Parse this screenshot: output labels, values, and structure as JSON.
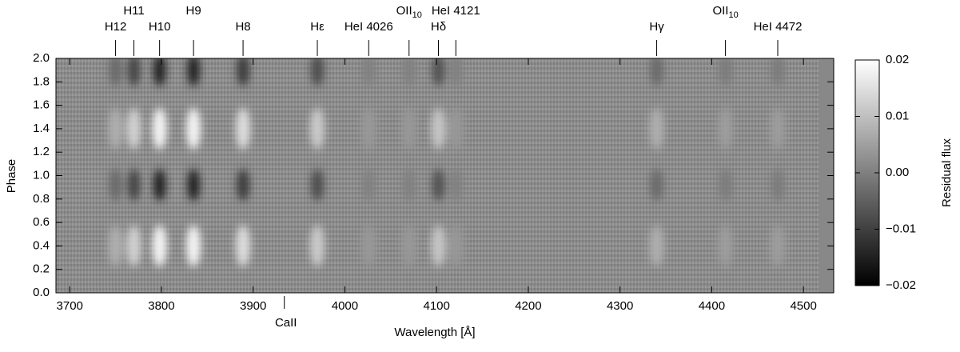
{
  "chart_data": {
    "type": "heatmap",
    "x_label": "Wavelength [Å]",
    "y_label": "Phase",
    "colorbar_label": "Residual flux",
    "xlim": [
      3685,
      4533
    ],
    "ylim": [
      0,
      2
    ],
    "xticks": [
      3700,
      3800,
      3900,
      4000,
      4100,
      4200,
      4300,
      4400,
      4500
    ],
    "yticks": [
      {
        "value": 0,
        "label": "0.0"
      },
      0.2,
      0.4,
      0.6,
      0.8,
      {
        "value": 1,
        "label": "1.0"
      },
      1.2,
      1.4,
      1.6,
      1.8,
      {
        "value": 2,
        "label": "2.0"
      }
    ],
    "clim": [
      -0.02,
      0.02
    ],
    "cticks": [
      {
        "value": -0.02,
        "label": "−0.02"
      },
      {
        "value": -0.01,
        "label": "−0.01"
      },
      {
        "value": 0,
        "label": "0.00"
      },
      0.01,
      0.02
    ],
    "bright_phases": [
      0.4,
      1.4
    ],
    "dark_phases": [
      0.92,
      1.9
    ],
    "lines": [
      {
        "label": "H12",
        "wavelength": 3750,
        "amplitude": 0.006
      },
      {
        "label": "H11",
        "wavelength": 3770,
        "amplitude": 0.012
      },
      {
        "label": "H10",
        "wavelength": 3798,
        "amplitude": 0.018
      },
      {
        "label": "H9",
        "wavelength": 3835,
        "amplitude": 0.018
      },
      {
        "label": "H8",
        "wavelength": 3889,
        "amplitude": 0.014
      },
      {
        "label": "Hε",
        "wavelength": 3970,
        "amplitude": 0.011
      },
      {
        "label": "HeI 4026",
        "wavelength": 4026,
        "amplitude": 0.002
      },
      {
        "label": "OII",
        "label_sub": "10",
        "wavelength": 4070,
        "amplitude": 0.002
      },
      {
        "label": "Hδ",
        "wavelength": 4102,
        "amplitude": 0.01
      },
      {
        "label": "HeI 4121",
        "wavelength": 4121,
        "amplitude": 0.002
      },
      {
        "label": "Hγ",
        "wavelength": 4340,
        "amplitude": 0.006
      },
      {
        "label": "OII",
        "label_sub": "10",
        "wavelength": 4415,
        "amplitude": 0.003
      },
      {
        "label": "HeI 4472",
        "wavelength": 4472,
        "amplitude": 0.003
      }
    ],
    "bottom_annotation": {
      "label": "CaII",
      "wavelength": 3934
    }
  }
}
